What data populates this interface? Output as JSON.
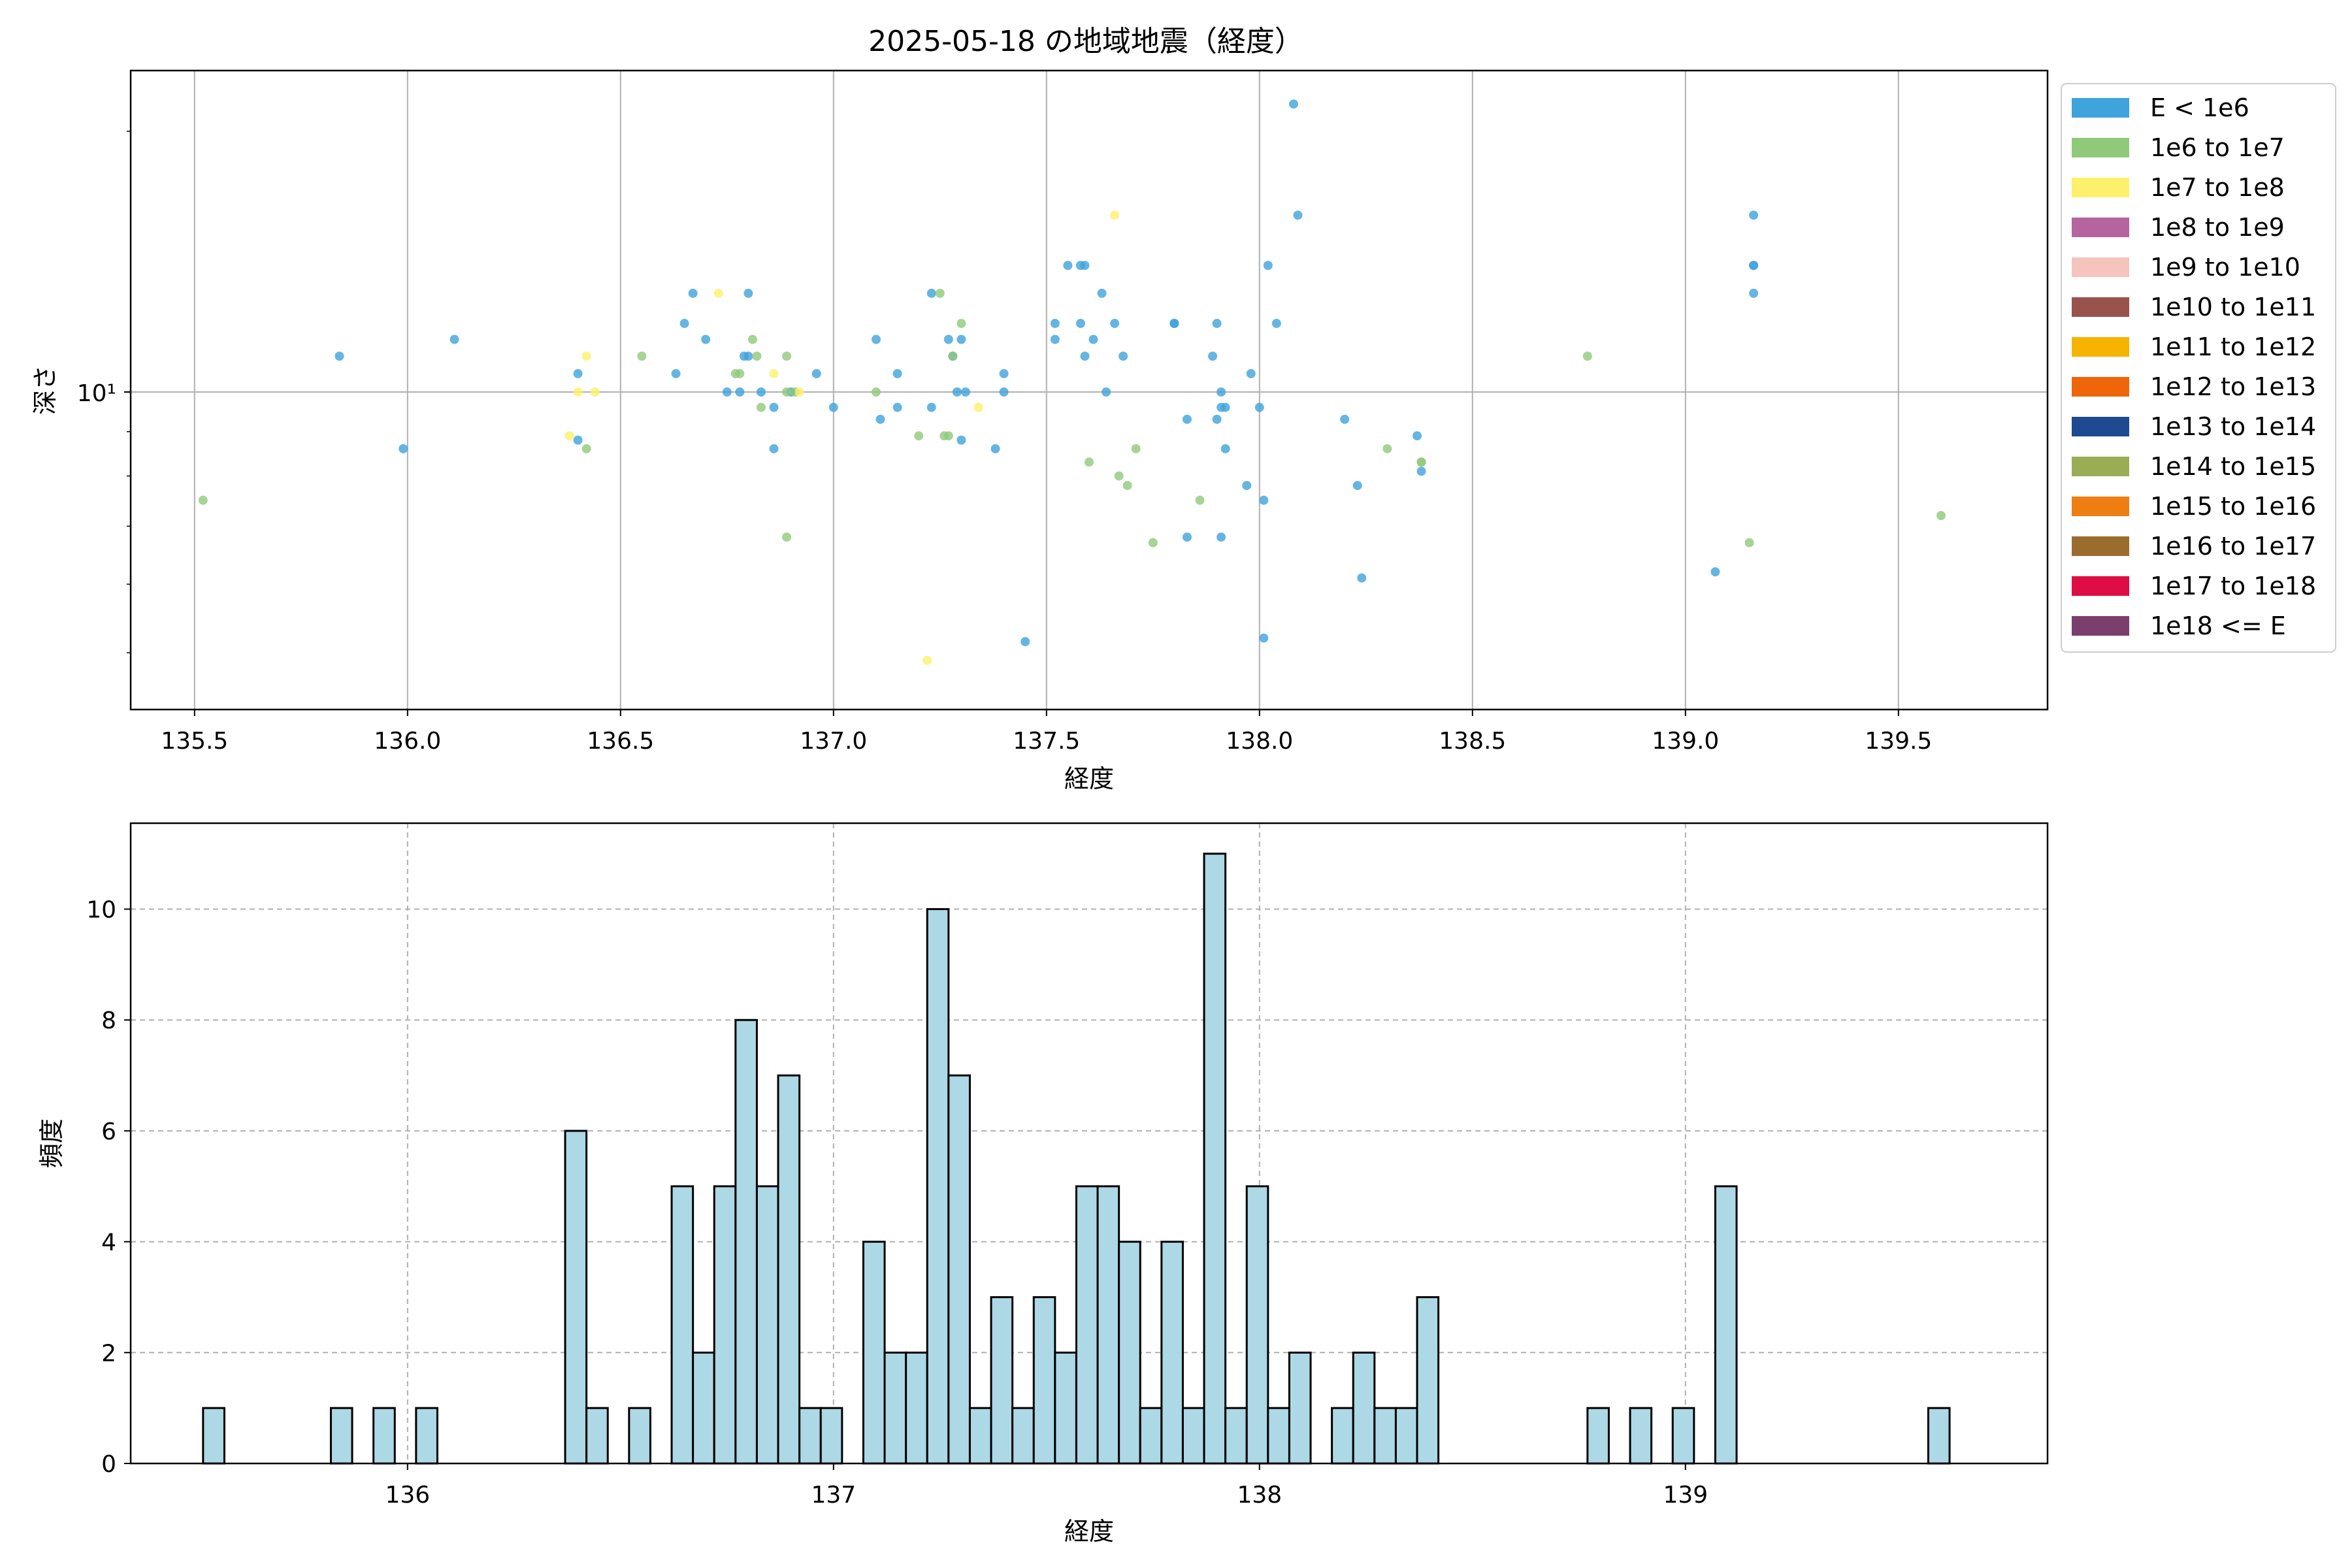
{
  "chart_data": [
    {
      "type": "scatter",
      "title": "2025-05-18 の地域地震（経度）",
      "xlabel": "経度",
      "ylabel": "深さ",
      "xlim": [
        135.35,
        139.85
      ],
      "ylim_log": [
        4.3,
        23.5
      ],
      "yscale": "log",
      "grid": true,
      "x_ticks": [
        "135.5",
        "136.0",
        "136.5",
        "137.0",
        "137.5",
        "138.0",
        "138.5",
        "139.0",
        "139.5"
      ],
      "y_tick_label": "10¹",
      "legend_position": "outside-right",
      "legend": [
        {
          "label": "E < 1e6",
          "color": "#3fa3dc"
        },
        {
          "label": "1e6 to 1e7",
          "color": "#90c97a"
        },
        {
          "label": "1e7 to 1e8",
          "color": "#fdf06a"
        },
        {
          "label": "1e8 to 1e9",
          "color": "#b5649f"
        },
        {
          "label": "1e9 to 1e10",
          "color": "#f5c4bd"
        },
        {
          "label": "1e10 to 1e11",
          "color": "#9a524d"
        },
        {
          "label": "1e11 to 1e12",
          "color": "#f6b300"
        },
        {
          "label": "1e12 to 1e13",
          "color": "#ee6609"
        },
        {
          "label": "1e13 to 1e14",
          "color": "#1d4a91"
        },
        {
          "label": "1e14 to 1e15",
          "color": "#9aad55"
        },
        {
          "label": "1e15 to 1e16",
          "color": "#ee7e11"
        },
        {
          "label": "1e16 to 1e17",
          "color": "#9a6d2e"
        },
        {
          "label": "1e17 to 1e18",
          "color": "#de0d45"
        },
        {
          "label": "1e18 <= E",
          "color": "#7b3f6d"
        }
      ],
      "series": [
        {
          "category": "E < 1e6",
          "color": "#3fa3dc",
          "points": [
            [
              135.84,
              11
            ],
            [
              135.99,
              8.6
            ],
            [
              136.11,
              11.5
            ],
            [
              136.4,
              10.5
            ],
            [
              136.4,
              8.8
            ],
            [
              136.63,
              10.5
            ],
            [
              136.65,
              12
            ],
            [
              136.67,
              13
            ],
            [
              136.7,
              11.5
            ],
            [
              136.75,
              10
            ],
            [
              136.78,
              10
            ],
            [
              136.79,
              11
            ],
            [
              136.8,
              13
            ],
            [
              136.8,
              11
            ],
            [
              136.83,
              10
            ],
            [
              136.86,
              8.6
            ],
            [
              136.86,
              9.6
            ],
            [
              136.9,
              10
            ],
            [
              136.96,
              10.5
            ],
            [
              137.0,
              9.6
            ],
            [
              137.1,
              11.5
            ],
            [
              137.11,
              9.3
            ],
            [
              137.15,
              9.6
            ],
            [
              137.15,
              10.5
            ],
            [
              137.23,
              13
            ],
            [
              137.23,
              9.6
            ],
            [
              137.27,
              11.5
            ],
            [
              137.28,
              11
            ],
            [
              137.29,
              10
            ],
            [
              137.3,
              11.5
            ],
            [
              137.3,
              8.8
            ],
            [
              137.31,
              10
            ],
            [
              137.38,
              8.6
            ],
            [
              137.4,
              10.5
            ],
            [
              137.4,
              10
            ],
            [
              137.45,
              5.15
            ],
            [
              137.52,
              12
            ],
            [
              137.52,
              11.5
            ],
            [
              137.55,
              14
            ],
            [
              137.58,
              12
            ],
            [
              137.58,
              14
            ],
            [
              137.59,
              14
            ],
            [
              137.59,
              11
            ],
            [
              137.61,
              11.5
            ],
            [
              137.63,
              13
            ],
            [
              137.64,
              10
            ],
            [
              137.66,
              12
            ],
            [
              137.68,
              11
            ],
            [
              137.8,
              12
            ],
            [
              137.8,
              12
            ],
            [
              137.83,
              9.3
            ],
            [
              137.83,
              6.8
            ],
            [
              137.89,
              11
            ],
            [
              137.9,
              12
            ],
            [
              137.9,
              9.3
            ],
            [
              137.91,
              10
            ],
            [
              137.91,
              9.6
            ],
            [
              137.92,
              9.6
            ],
            [
              137.92,
              8.6
            ],
            [
              137.91,
              6.8
            ],
            [
              137.97,
              7.8
            ],
            [
              137.98,
              10.5
            ],
            [
              138.0,
              9.6
            ],
            [
              138.01,
              7.5
            ],
            [
              138.01,
              5.2
            ],
            [
              138.02,
              14
            ],
            [
              138.04,
              12
            ],
            [
              138.08,
              21.5
            ],
            [
              138.09,
              16
            ],
            [
              138.2,
              9.3
            ],
            [
              138.23,
              7.8
            ],
            [
              138.24,
              6.1
            ],
            [
              138.37,
              8.9
            ],
            [
              138.38,
              8.1
            ],
            [
              139.07,
              6.2
            ],
            [
              139.16,
              16
            ],
            [
              139.16,
              14
            ],
            [
              139.16,
              14
            ],
            [
              139.16,
              13
            ]
          ]
        },
        {
          "category": "1e6 to 1e7",
          "color": "#90c97a",
          "points": [
            [
              135.52,
              7.5
            ],
            [
              136.42,
              8.6
            ],
            [
              136.55,
              11
            ],
            [
              136.77,
              10.5
            ],
            [
              136.78,
              10.5
            ],
            [
              136.81,
              11.5
            ],
            [
              136.82,
              11
            ],
            [
              136.83,
              9.6
            ],
            [
              136.89,
              10
            ],
            [
              136.89,
              11
            ],
            [
              136.89,
              6.8
            ],
            [
              136.91,
              10
            ],
            [
              137.1,
              10
            ],
            [
              137.2,
              8.9
            ],
            [
              137.25,
              13
            ],
            [
              137.26,
              8.9
            ],
            [
              137.27,
              8.9
            ],
            [
              137.28,
              11
            ],
            [
              137.3,
              12
            ],
            [
              137.6,
              8.3
            ],
            [
              137.67,
              8.0
            ],
            [
              137.69,
              7.8
            ],
            [
              137.71,
              8.6
            ],
            [
              137.75,
              6.7
            ],
            [
              137.86,
              7.5
            ],
            [
              138.3,
              8.6
            ],
            [
              138.38,
              8.3
            ],
            [
              138.38,
              8.3
            ],
            [
              138.77,
              11
            ],
            [
              139.15,
              6.7
            ],
            [
              139.6,
              7.2
            ]
          ]
        },
        {
          "category": "1e7 to 1e8",
          "color": "#fdf06a",
          "points": [
            [
              136.38,
              8.9
            ],
            [
              136.4,
              10
            ],
            [
              136.42,
              11
            ],
            [
              136.44,
              10
            ],
            [
              136.73,
              13
            ],
            [
              136.86,
              10.5
            ],
            [
              136.92,
              10
            ],
            [
              137.22,
              4.9
            ],
            [
              137.34,
              9.6
            ],
            [
              137.66,
              16
            ]
          ]
        }
      ]
    },
    {
      "type": "bar",
      "xlabel": "経度",
      "ylabel": "頻度",
      "xlim": [
        135.35,
        139.85
      ],
      "ylim": [
        0,
        11.55
      ],
      "grid": true,
      "x_ticks": [
        "136",
        "137",
        "138",
        "139"
      ],
      "y_ticks": [
        "0",
        "2",
        "4",
        "6",
        "8",
        "10"
      ],
      "bin_start": 135.52,
      "bin_width": 0.05,
      "bar_color": "#add8e6",
      "values": [
        1,
        0,
        0,
        0,
        0,
        0,
        1,
        0,
        1,
        0,
        1,
        0,
        0,
        0,
        0,
        0,
        0,
        6,
        1,
        0,
        1,
        0,
        5,
        2,
        5,
        8,
        5,
        7,
        1,
        1,
        0,
        4,
        2,
        2,
        10,
        7,
        1,
        3,
        1,
        3,
        2,
        5,
        5,
        4,
        1,
        4,
        1,
        11,
        1,
        5,
        1,
        2,
        0,
        1,
        2,
        1,
        1,
        3,
        0,
        0,
        0,
        0,
        0,
        0,
        0,
        1,
        0,
        1,
        0,
        1,
        0,
        5,
        0,
        0,
        0,
        0,
        0,
        0,
        0,
        0,
        0,
        1
      ]
    }
  ]
}
